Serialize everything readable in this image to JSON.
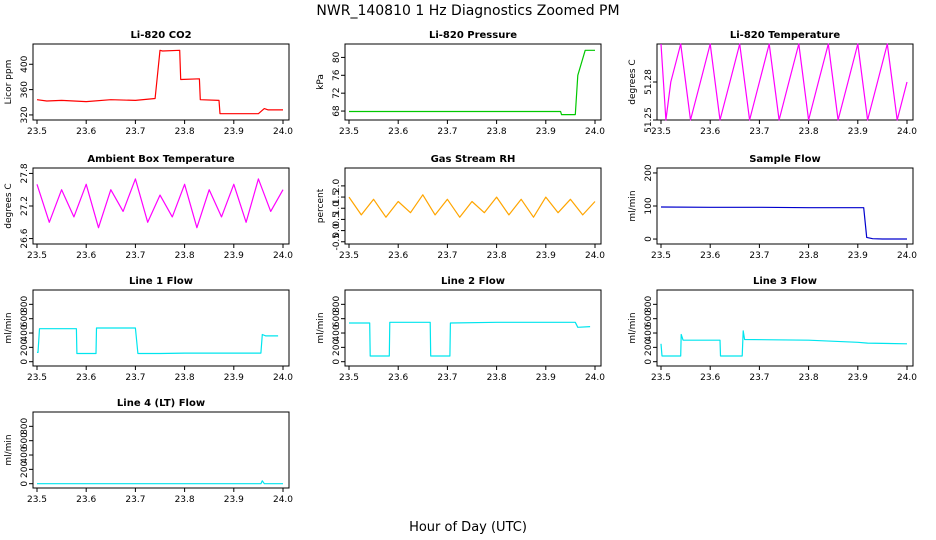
{
  "figure": {
    "title": "NWR_140810  1 Hz Diagnostics Zoomed PM",
    "xlabel": "Hour of Day (UTC)"
  },
  "chart_data": [
    {
      "type": "line",
      "title": "Li-820 CO2",
      "ylabel": "Licor ppm",
      "color": "#ff0000",
      "xlim": [
        23.5,
        24.0
      ],
      "ylim": [
        312,
        432
      ],
      "x_ticks": [
        "23.5",
        "23.6",
        "23.7",
        "23.8",
        "23.9",
        "24.0"
      ],
      "y_ticks": [
        320,
        360,
        400
      ],
      "series": [
        {
          "name": "CO2",
          "x": [
            23.5,
            23.52,
            23.55,
            23.6,
            23.65,
            23.7,
            23.74,
            23.75,
            23.755,
            23.79,
            23.792,
            23.83,
            23.832,
            23.87,
            23.872,
            23.95,
            23.962,
            23.97,
            24.0
          ],
          "y": [
            344,
            342,
            343,
            341,
            344,
            343,
            346,
            422,
            421,
            422,
            376,
            377,
            344,
            343,
            322,
            322,
            330,
            328,
            328
          ]
        }
      ]
    },
    {
      "type": "line",
      "title": "Li-820 Pressure",
      "ylabel": "kPa",
      "color": "#00c800",
      "xlim": [
        23.5,
        24.0
      ],
      "ylim": [
        66,
        83
      ],
      "x_ticks": [
        "23.5",
        "23.6",
        "23.7",
        "23.8",
        "23.9",
        "24.0"
      ],
      "y_ticks": [
        68,
        72,
        76,
        80
      ],
      "series": [
        {
          "name": "Pressure",
          "x": [
            23.5,
            23.6,
            23.7,
            23.8,
            23.9,
            23.93,
            23.932,
            23.96,
            23.965,
            23.98,
            23.99,
            24.0
          ],
          "y": [
            67.9,
            67.9,
            67.9,
            67.9,
            67.9,
            67.9,
            67.2,
            67.2,
            76,
            81.6,
            81.6,
            81.6
          ]
        }
      ]
    },
    {
      "type": "line",
      "title": "Li-820 Temperature",
      "ylabel": "degrees C",
      "color": "#ff00ff",
      "xlim": [
        23.5,
        24.0
      ],
      "ylim": [
        51.25,
        51.31
      ],
      "x_ticks": [
        "23.5",
        "23.6",
        "23.7",
        "23.8",
        "23.9",
        "24.0"
      ],
      "y_ticks": [
        51.25,
        51.28
      ],
      "series": [
        {
          "name": "Temperature",
          "x": [
            23.5,
            23.51,
            23.52,
            23.54,
            23.56,
            23.58,
            23.6,
            23.62,
            23.64,
            23.66,
            23.68,
            23.7,
            23.72,
            23.74,
            23.76,
            23.78,
            23.8,
            23.82,
            23.84,
            23.86,
            23.88,
            23.9,
            23.92,
            23.94,
            23.96,
            23.98,
            24.0
          ],
          "y": [
            51.31,
            51.25,
            51.28,
            51.31,
            51.25,
            51.28,
            51.31,
            51.25,
            51.28,
            51.31,
            51.25,
            51.28,
            51.31,
            51.25,
            51.28,
            51.31,
            51.25,
            51.28,
            51.31,
            51.25,
            51.28,
            51.31,
            51.25,
            51.28,
            51.31,
            51.25,
            51.28
          ]
        }
      ]
    },
    {
      "type": "line",
      "title": "Ambient Box Temperature",
      "ylabel": "degrees C",
      "color": "#ff00ff",
      "xlim": [
        23.5,
        24.0
      ],
      "ylim": [
        26.5,
        27.9
      ],
      "x_ticks": [
        "23.5",
        "23.6",
        "23.7",
        "23.8",
        "23.9",
        "24.0"
      ],
      "y_ticks": [
        26.6,
        27.2,
        27.8
      ],
      "series": [
        {
          "name": "Box Temp",
          "x": [
            23.5,
            23.525,
            23.55,
            23.575,
            23.6,
            23.625,
            23.65,
            23.675,
            23.7,
            23.725,
            23.75,
            23.775,
            23.8,
            23.825,
            23.85,
            23.875,
            23.9,
            23.925,
            23.95,
            23.975,
            24.0
          ],
          "y": [
            27.6,
            26.9,
            27.5,
            27.0,
            27.6,
            26.8,
            27.5,
            27.1,
            27.7,
            26.9,
            27.4,
            27.0,
            27.6,
            26.8,
            27.5,
            27.0,
            27.6,
            26.9,
            27.7,
            27.1,
            27.5
          ]
        }
      ]
    },
    {
      "type": "line",
      "title": "Gas Stream RH",
      "ylabel": "percent",
      "color": "#ffa500",
      "xlim": [
        23.5,
        24.0
      ],
      "ylim": [
        -0.6,
        2.8
      ],
      "x_ticks": [
        "23.5",
        "23.6",
        "23.7",
        "23.8",
        "23.9",
        "24.0"
      ],
      "y_ticks": [
        "-0.5",
        "0.0",
        "0.5",
        "1.0",
        "1.5",
        "2.0"
      ],
      "series": [
        {
          "name": "RH",
          "x": [
            23.5,
            23.525,
            23.55,
            23.575,
            23.6,
            23.625,
            23.65,
            23.675,
            23.7,
            23.725,
            23.75,
            23.775,
            23.8,
            23.825,
            23.85,
            23.875,
            23.9,
            23.925,
            23.95,
            23.975,
            24.0
          ],
          "y": [
            1.5,
            0.7,
            1.4,
            0.6,
            1.3,
            0.8,
            1.6,
            0.7,
            1.4,
            0.6,
            1.3,
            0.8,
            1.5,
            0.7,
            1.4,
            0.6,
            1.5,
            0.8,
            1.4,
            0.7,
            1.3
          ]
        }
      ]
    },
    {
      "type": "line",
      "title": "Sample Flow",
      "ylabel": "ml/min",
      "color": "#0000cd",
      "xlim": [
        23.5,
        24.0
      ],
      "ylim": [
        -15,
        215
      ],
      "x_ticks": [
        "23.5",
        "23.6",
        "23.7",
        "23.8",
        "23.9",
        "24.0"
      ],
      "y_ticks": [
        0,
        100,
        200
      ],
      "series": [
        {
          "name": "Sample Flow",
          "x": [
            23.5,
            23.6,
            23.7,
            23.8,
            23.9,
            23.912,
            23.918,
            23.93,
            23.95,
            24.0
          ],
          "y": [
            97,
            96,
            96,
            95,
            95,
            95,
            5,
            1,
            0,
            0
          ]
        }
      ]
    },
    {
      "type": "line",
      "title": "Line 1 Flow",
      "ylabel": "ml/min",
      "color": "#00e5ee",
      "xlim": [
        23.5,
        24.0
      ],
      "ylim": [
        -60,
        1000
      ],
      "x_ticks": [
        "23.5",
        "23.6",
        "23.7",
        "23.8",
        "23.9",
        "24.0"
      ],
      "y_ticks": [
        0,
        200,
        400,
        600,
        800
      ],
      "series": [
        {
          "name": "Line 1",
          "x": [
            23.5,
            23.502,
            23.505,
            23.58,
            23.581,
            23.62,
            23.621,
            23.7,
            23.705,
            23.75,
            23.8,
            23.9,
            23.955,
            23.958,
            23.965,
            23.99
          ],
          "y": [
            130,
            130,
            460,
            460,
            115,
            115,
            470,
            470,
            115,
            115,
            120,
            120,
            120,
            380,
            360,
            360
          ]
        }
      ]
    },
    {
      "type": "line",
      "title": "Line 2 Flow",
      "ylabel": "ml/min",
      "color": "#00e5ee",
      "xlim": [
        23.5,
        24.0
      ],
      "ylim": [
        -60,
        1000
      ],
      "x_ticks": [
        "23.5",
        "23.6",
        "23.7",
        "23.8",
        "23.9",
        "24.0"
      ],
      "y_ticks": [
        0,
        200,
        400,
        600,
        800
      ],
      "series": [
        {
          "name": "Line 2",
          "x": [
            23.5,
            23.542,
            23.543,
            23.582,
            23.583,
            23.665,
            23.666,
            23.705,
            23.706,
            23.8,
            23.9,
            23.96,
            23.965,
            23.99
          ],
          "y": [
            540,
            540,
            80,
            80,
            550,
            550,
            80,
            80,
            540,
            550,
            550,
            550,
            480,
            490
          ]
        }
      ]
    },
    {
      "type": "line",
      "title": "Line 3 Flow",
      "ylabel": "ml/min",
      "color": "#00e5ee",
      "xlim": [
        23.5,
        24.0
      ],
      "ylim": [
        -60,
        1000
      ],
      "x_ticks": [
        "23.5",
        "23.6",
        "23.7",
        "23.8",
        "23.9",
        "24.0"
      ],
      "y_ticks": [
        0,
        200,
        400,
        600,
        800
      ],
      "series": [
        {
          "name": "Line 3",
          "x": [
            23.5,
            23.502,
            23.505,
            23.54,
            23.541,
            23.545,
            23.62,
            23.621,
            23.665,
            23.667,
            23.67,
            23.8,
            23.9,
            23.92,
            24.0
          ],
          "y": [
            250,
            80,
            80,
            80,
            380,
            300,
            300,
            80,
            80,
            430,
            310,
            300,
            270,
            260,
            250
          ]
        }
      ]
    },
    {
      "type": "line",
      "title": "Line 4 (LT) Flow",
      "ylabel": "ml/min",
      "color": "#00e5ee",
      "xlim": [
        23.5,
        24.0
      ],
      "ylim": [
        -60,
        1000
      ],
      "x_ticks": [
        "23.5",
        "23.6",
        "23.7",
        "23.8",
        "23.9",
        "24.0"
      ],
      "y_ticks": [
        0,
        200,
        400,
        600,
        800
      ],
      "series": [
        {
          "name": "Line 4",
          "x": [
            23.5,
            23.6,
            23.7,
            23.8,
            23.9,
            23.955,
            23.958,
            23.962,
            24.0
          ],
          "y": [
            0,
            0,
            0,
            0,
            0,
            0,
            40,
            0,
            0
          ]
        }
      ]
    }
  ]
}
